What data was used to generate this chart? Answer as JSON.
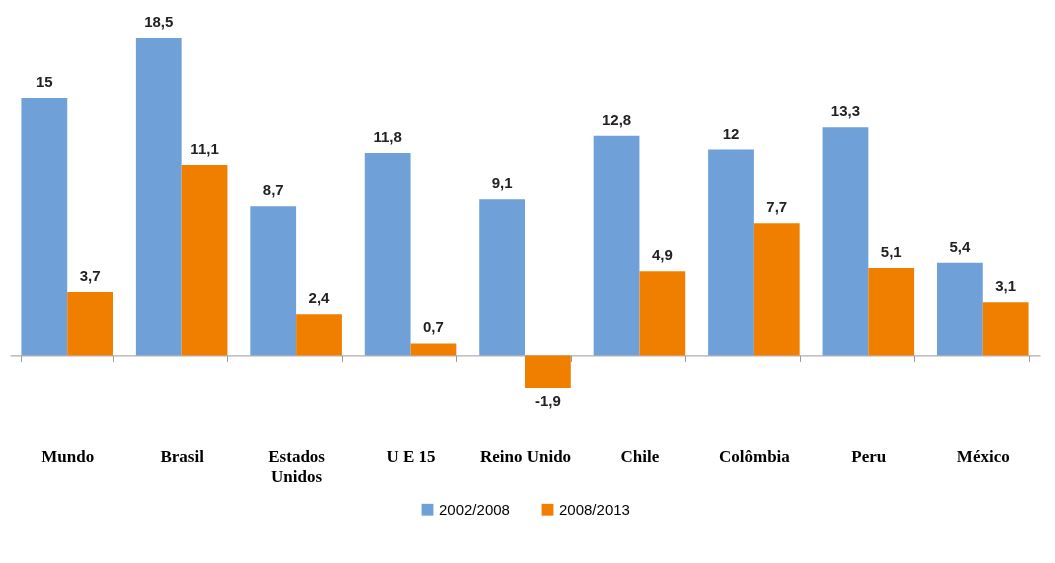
{
  "chart_data": {
    "type": "bar",
    "categories": [
      "Mundo",
      "Brasil",
      "Estados Unidos",
      "U E 15",
      "Reino Unido",
      "Chile",
      "Colômbia",
      "Peru",
      "México"
    ],
    "series": [
      {
        "name": "2002/2008",
        "color": "#70a0d8",
        "values": [
          15,
          18.5,
          8.7,
          11.8,
          9.1,
          12.8,
          12,
          13.3,
          5.4
        ],
        "value_labels": [
          "15",
          "18,5",
          "8,7",
          "11,8",
          "9,1",
          "12,8",
          "12",
          "13,3",
          "5,4"
        ]
      },
      {
        "name": "2008/2013",
        "color": "#f07f00",
        "values": [
          3.7,
          11.1,
          2.4,
          0.7,
          -1.9,
          4.9,
          7.7,
          5.1,
          3.1
        ],
        "value_labels": [
          "3,7",
          "11,1",
          "2,4",
          "0,7",
          "-1,9",
          "4,9",
          "7,7",
          "5,1",
          "3,1"
        ]
      }
    ],
    "legend": "bottom"
  }
}
